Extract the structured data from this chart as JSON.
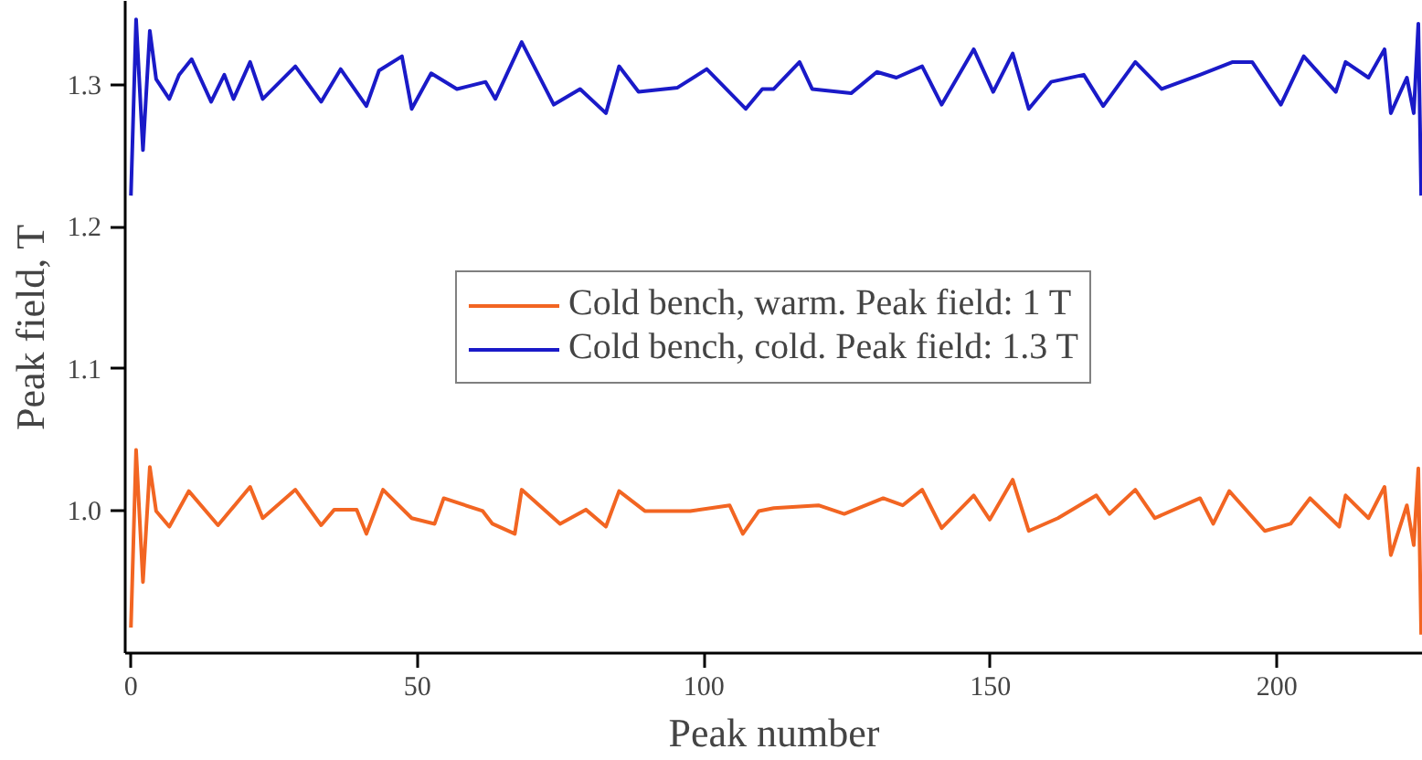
{
  "chart_data": {
    "type": "line",
    "xlabel": "Peak number",
    "ylabel": "Peak field, T",
    "xlim": [
      -1,
      225.5
    ],
    "ylim": [
      0.9,
      1.359
    ],
    "xticks": [
      0,
      50,
      100,
      150,
      200
    ],
    "yticks": [
      {
        "value": 1.0,
        "label": "1.0"
      },
      1.1,
      1.2,
      1.3
    ],
    "grid": false,
    "legend": "center",
    "marker": "none",
    "line_style": "solid",
    "series": [
      {
        "name": "Cold bench, warm. Peak field: 1 T",
        "color": "#f26522",
        "x": [
          0,
          0.9,
          2.1,
          3.3,
          4.4,
          6.7,
          10.1,
          15.2,
          20.8,
          23,
          28.7,
          33.2,
          35.5,
          39.4,
          41.1,
          44,
          49,
          53,
          54.6,
          61.4,
          63.1,
          67,
          68.2,
          74.9,
          79.4,
          82.9,
          85.2,
          89.7,
          97.6,
          104.5,
          106.8,
          109.6,
          112.2,
          120,
          124.5,
          131.3,
          134.7,
          138.1,
          141.5,
          147.1,
          149.9,
          153.9,
          156.7,
          161.8,
          168.5,
          170.8,
          175.3,
          178.7,
          186.6,
          188.9,
          191.7,
          197.9,
          202.4,
          205.8,
          210.9,
          212,
          216,
          218.8,
          219.9,
          222.7,
          223.9,
          224.7,
          225.2
        ],
        "values": [
          0.918,
          1.043,
          0.95,
          1.031,
          1.0,
          0.989,
          1.014,
          0.99,
          1.017,
          0.995,
          1.015,
          0.99,
          1.001,
          1.001,
          0.984,
          1.015,
          0.995,
          0.991,
          1.009,
          1.0,
          0.991,
          0.984,
          1.015,
          0.991,
          1.001,
          0.989,
          1.014,
          1.0,
          1.0,
          1.004,
          0.984,
          1.0,
          1.002,
          1.004,
          0.998,
          1.009,
          1.004,
          1.015,
          0.988,
          1.011,
          0.994,
          1.022,
          0.986,
          0.995,
          1.011,
          0.998,
          1.015,
          0.995,
          1.009,
          0.991,
          1.014,
          0.986,
          0.991,
          1.009,
          0.989,
          1.011,
          0.995,
          1.017,
          0.969,
          1.004,
          0.976,
          1.03,
          0.913
        ]
      },
      {
        "name": "Cold bench, cold. Peak field: 1.3 T",
        "color": "#1a1ac8",
        "x": [
          0,
          0.9,
          2.1,
          3.3,
          4.4,
          6.7,
          8.4,
          10.6,
          14,
          16.3,
          17.9,
          20.8,
          23,
          28.7,
          33.2,
          36.6,
          41.1,
          43.3,
          47.3,
          49,
          52.4,
          56.9,
          61.9,
          63.6,
          68.2,
          73.8,
          78.4,
          82.9,
          85.2,
          88.6,
          95.4,
          100.5,
          107.3,
          110.2,
          112.2,
          116.7,
          118.9,
          125.7,
          130.2,
          133.6,
          138.1,
          141.5,
          147.1,
          150.5,
          153.9,
          156.7,
          160.6,
          166.3,
          169.7,
          175.3,
          179.9,
          186.6,
          192.3,
          195.7,
          200.7,
          204.7,
          210.3,
          212,
          216,
          218.8,
          219.9,
          222.7,
          223.9,
          224.7,
          225.2
        ],
        "values": [
          1.222,
          1.346,
          1.254,
          1.338,
          1.304,
          1.29,
          1.307,
          1.318,
          1.288,
          1.307,
          1.29,
          1.316,
          1.29,
          1.313,
          1.288,
          1.311,
          1.285,
          1.31,
          1.32,
          1.283,
          1.308,
          1.297,
          1.302,
          1.29,
          1.33,
          1.286,
          1.297,
          1.28,
          1.313,
          1.295,
          1.298,
          1.311,
          1.283,
          1.297,
          1.297,
          1.316,
          1.297,
          1.294,
          1.309,
          1.305,
          1.313,
          1.286,
          1.325,
          1.295,
          1.322,
          1.283,
          1.302,
          1.307,
          1.285,
          1.316,
          1.297,
          1.307,
          1.316,
          1.316,
          1.286,
          1.32,
          1.295,
          1.316,
          1.305,
          1.325,
          1.28,
          1.305,
          1.28,
          1.343,
          1.222
        ]
      }
    ]
  }
}
